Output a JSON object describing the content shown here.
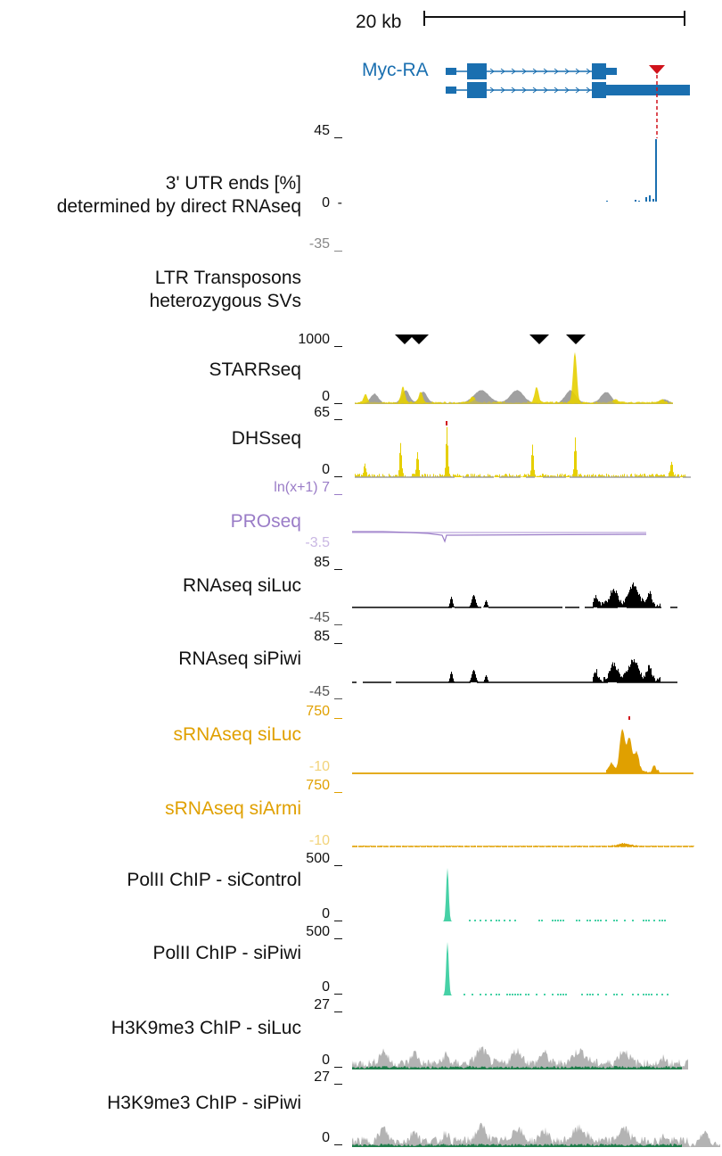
{
  "scale_bar": {
    "label": "20 kb"
  },
  "gene": {
    "name": "Myc-RA",
    "color": "#1a6fb0"
  },
  "colors": {
    "utr": "#1a6fb0",
    "utr_marker": "#d0121b",
    "starr": "#e6cf00",
    "starr_ctrl": "#a0a0a0",
    "pro": "#9a7cc7",
    "pro_light": "#c9b7e3",
    "rna": "#000000",
    "srna": "#e0a000",
    "srna_light": "#f2d37a",
    "polii": "#46d1a6",
    "h3k9": "#b3b3b3",
    "h3k9_dark": "#1e7d4a",
    "svmarker": "#000000"
  },
  "tracks": [
    {
      "id": "utr",
      "lines": [
        "3' UTR ends [%]",
        "determined by direct RNAseq"
      ],
      "max": "45",
      "min": "0",
      "neg": "-35"
    },
    {
      "id": "ltr",
      "lines": [
        "LTR Transposons",
        "heterozygous SVs"
      ]
    },
    {
      "id": "starr",
      "lines": [
        "STARRseq"
      ],
      "max": "1000",
      "min": "0"
    },
    {
      "id": "dhs",
      "lines": [
        "DHSseq"
      ],
      "max": "65",
      "min": "0"
    },
    {
      "id": "pro",
      "lines": [
        "PROseq"
      ],
      "max_prefix": "ln(x+1)",
      "max": "7",
      "min": "-3.5"
    },
    {
      "id": "rna_siluc",
      "lines": [
        "RNAseq siLuc"
      ],
      "max": "85",
      "min": "-45"
    },
    {
      "id": "rna_sipiwi",
      "lines": [
        "RNAseq siPiwi"
      ],
      "max": "85",
      "min": "-45"
    },
    {
      "id": "srna_siluc",
      "lines": [
        "sRNAseq siLuc"
      ],
      "max": "750",
      "min": "-10"
    },
    {
      "id": "srna_siarmi",
      "lines": [
        "sRNAseq siArmi"
      ],
      "max": "750",
      "min": "-10"
    },
    {
      "id": "polii_sicontrol",
      "lines": [
        "PolII ChIP - siControl"
      ],
      "max": "500",
      "min": "0"
    },
    {
      "id": "polii_sipiwi",
      "lines": [
        "PolII ChIP - siPiwi"
      ],
      "max": "500",
      "min": "0"
    },
    {
      "id": "h3k9_siluc",
      "lines": [
        "H3K9me3 ChIP - siLuc"
      ],
      "max": "27",
      "min": "0"
    },
    {
      "id": "h3k9_sipiwi",
      "lines": [
        "H3K9me3 ChIP - siPiwi"
      ],
      "max": "27",
      "min": "0"
    }
  ]
}
